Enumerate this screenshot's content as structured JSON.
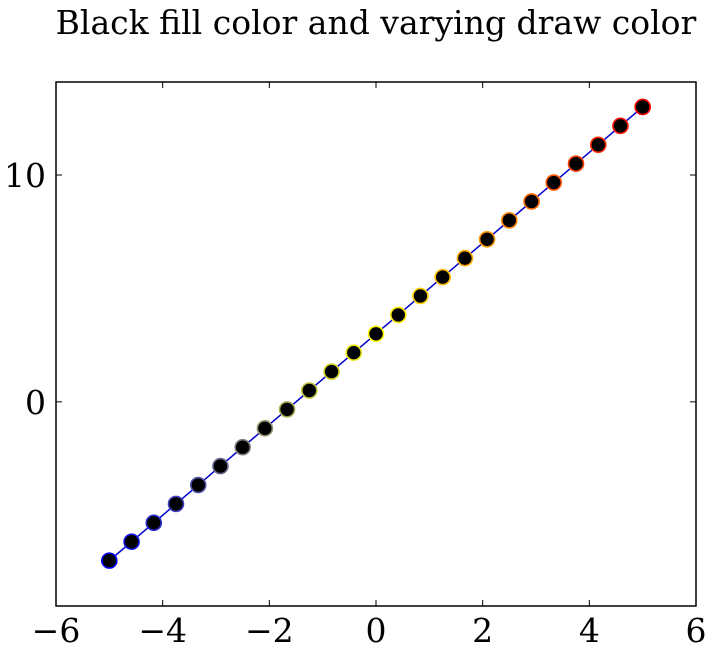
{
  "chart_data": {
    "type": "scatter",
    "title": "Black fill color and varying draw color",
    "xlabel": "",
    "ylabel": "",
    "xlim": [
      -6,
      6
    ],
    "ylim": [
      -9,
      14.1
    ],
    "x_ticks": [
      -6,
      -4,
      -2,
      0,
      2,
      4,
      6
    ],
    "x_tick_labels": [
      "−6",
      "−4",
      "−2",
      "0",
      "2",
      "4",
      "6"
    ],
    "y_ticks": [
      0,
      10
    ],
    "y_tick_labels": [
      "0",
      "10"
    ],
    "grid": false,
    "legend": "none",
    "line_color": "#0000cc",
    "marker_fill": "#000000",
    "marker_draw_colormap": [
      "#0000ff",
      "#ffff00",
      "#ff0000"
    ],
    "series": [
      {
        "x": [
          -5.0,
          -4.583,
          -4.167,
          -3.75,
          -3.333,
          -2.917,
          -2.5,
          -2.083,
          -1.667,
          -1.25,
          -0.833,
          -0.417,
          0.0,
          0.417,
          0.833,
          1.25,
          1.667,
          2.083,
          2.5,
          2.917,
          3.333,
          3.75,
          4.167,
          4.583,
          5.0
        ],
        "y": [
          -7.0,
          -6.167,
          -5.333,
          -4.5,
          -3.667,
          -2.833,
          -2.0,
          -1.167,
          -0.333,
          0.5,
          1.333,
          2.167,
          3.0,
          3.833,
          4.667,
          5.5,
          6.333,
          7.167,
          8.0,
          8.833,
          9.667,
          10.5,
          11.333,
          12.167,
          13.0
        ]
      }
    ]
  }
}
